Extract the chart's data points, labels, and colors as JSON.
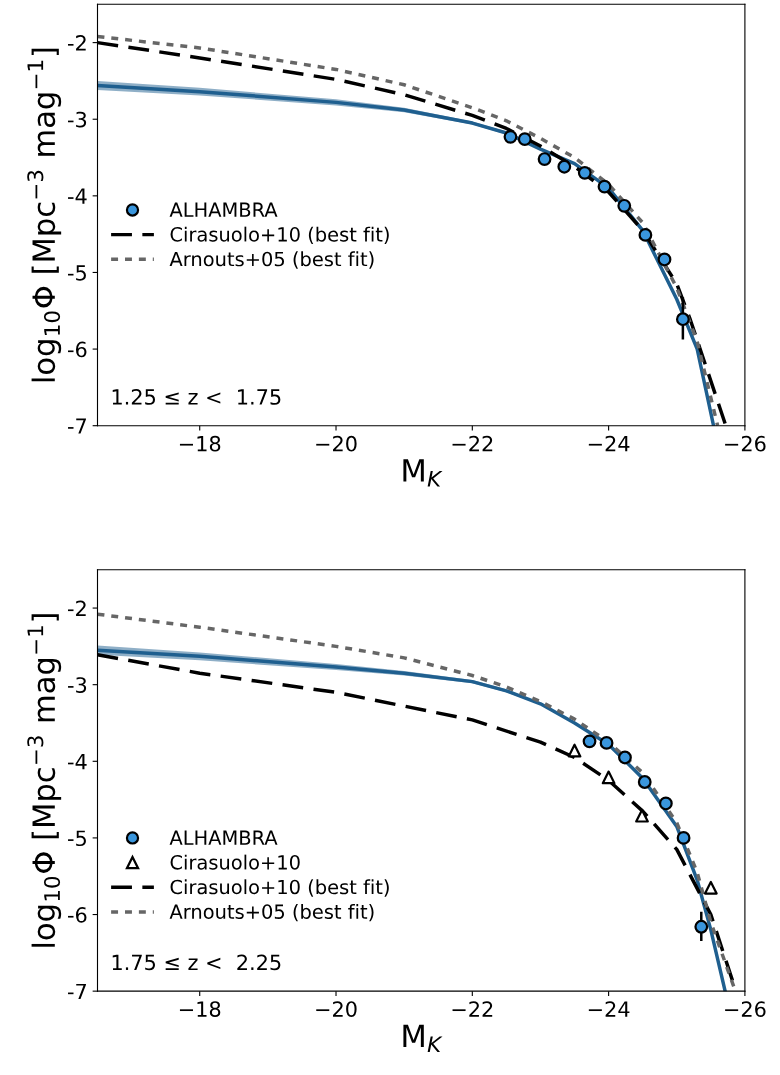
{
  "chart_data": [
    {
      "type": "line",
      "xlabel": "M$_{K}$",
      "ylabel": "log$_{10}$Φ [Mpc$^{−3}$ mag$^{−1}$]",
      "xlim": [
        -16.5,
        -26
      ],
      "ylim": [
        -7,
        -1.5
      ],
      "xticks": [
        {
          "value": -18,
          "label": "−18"
        },
        {
          "value": -20,
          "label": "−20"
        },
        {
          "value": -22,
          "label": "−22"
        },
        {
          "value": -24,
          "label": "−24"
        },
        {
          "value": -26,
          "label": "−26"
        }
      ],
      "yticks": [
        {
          "value": -7,
          "label": "-7"
        },
        {
          "value": -6,
          "label": "-6"
        },
        {
          "value": -5,
          "label": "-5"
        },
        {
          "value": -4,
          "label": "-4"
        },
        {
          "value": -3,
          "label": "-3"
        },
        {
          "value": -2,
          "label": "-2"
        }
      ],
      "grid": false,
      "legend": "left",
      "annotations": [
        "1.25 ≤ z <  1.75"
      ],
      "series": [
        {
          "type": "line",
          "color": "#1f5f8f",
          "line_style": "solid",
          "marker": "none",
          "x": [
            -16.5,
            -18,
            -20,
            -21,
            -22,
            -22.5,
            -23,
            -23.5,
            -24,
            -24.5,
            -25,
            -25.3,
            -25.54
          ],
          "values": [
            -2.56,
            -2.64,
            -2.78,
            -2.88,
            -3.05,
            -3.18,
            -3.39,
            -3.58,
            -3.9,
            -4.45,
            -5.35,
            -6.0,
            -7.0
          ],
          "lower": [
            -2.62,
            -2.69,
            -2.82,
            -2.91,
            -3.07,
            -3.2,
            -3.4,
            -3.59,
            -3.91,
            -4.46,
            -5.36,
            -6.01,
            -7.0
          ],
          "upper": [
            -2.5,
            -2.59,
            -2.74,
            -2.85,
            -3.03,
            -3.16,
            -3.38,
            -3.57,
            -3.89,
            -4.44,
            -5.34,
            -5.99,
            -7.0
          ]
        },
        {
          "type": "scatter",
          "name": "ALHAMBRA",
          "color": "#3a96dd",
          "marker": "circle",
          "x": [
            -22.56,
            -22.77,
            -23.06,
            -23.35,
            -23.65,
            -23.94,
            -24.23,
            -24.54,
            -24.82,
            -25.09
          ],
          "values": [
            -3.23,
            -3.26,
            -3.52,
            -3.62,
            -3.7,
            -3.88,
            -4.13,
            -4.51,
            -4.83,
            -5.61
          ],
          "errors": [
            null,
            null,
            null,
            null,
            null,
            null,
            null,
            null,
            null,
            [
              -5.86,
              -5.34
            ]
          ]
        },
        {
          "type": "line",
          "name": "Cirasuolo+10 (best fit)",
          "color": "#000000",
          "line_style": "dashed",
          "marker": "none",
          "x": [
            -16.5,
            -18,
            -20,
            -21,
            -22,
            -22.5,
            -23,
            -23.5,
            -24,
            -24.5,
            -25,
            -25.2,
            -25.72
          ],
          "values": [
            -2.0,
            -2.2,
            -2.48,
            -2.68,
            -2.95,
            -3.12,
            -3.35,
            -3.62,
            -3.95,
            -4.45,
            -5.15,
            -5.62,
            -7.0
          ]
        },
        {
          "type": "line",
          "name": "Arnouts+05 (best fit)",
          "color": "#666666",
          "line_style": "dotted",
          "marker": "none",
          "x": [
            -16.5,
            -18,
            -20,
            -21,
            -22,
            -22.5,
            -23,
            -23.5,
            -24,
            -24.5,
            -25,
            -25.3,
            -25.6
          ],
          "values": [
            -1.92,
            -2.07,
            -2.35,
            -2.55,
            -2.85,
            -3.02,
            -3.25,
            -3.5,
            -3.85,
            -4.35,
            -5.2,
            -5.9,
            -7.0
          ]
        }
      ]
    },
    {
      "type": "line",
      "xlabel": "M$_{K}$",
      "ylabel": "log$_{10}$Φ [Mpc$^{−3}$ mag$^{−1}$]",
      "xlim": [
        -16.5,
        -26
      ],
      "ylim": [
        -7,
        -1.5
      ],
      "xticks": [
        {
          "value": -18,
          "label": "−18"
        },
        {
          "value": -20,
          "label": "−20"
        },
        {
          "value": -22,
          "label": "−22"
        },
        {
          "value": -24,
          "label": "−24"
        },
        {
          "value": -26,
          "label": "−26"
        }
      ],
      "yticks": [
        {
          "value": -7,
          "label": "-7"
        },
        {
          "value": -6,
          "label": "-6"
        },
        {
          "value": -5,
          "label": "-5"
        },
        {
          "value": -4,
          "label": "-4"
        },
        {
          "value": -3,
          "label": "-3"
        },
        {
          "value": -2,
          "label": "-2"
        }
      ],
      "grid": false,
      "legend": "bottom left",
      "annotations": [
        "1.75 ≤ z <  2.25"
      ],
      "series": [
        {
          "type": "line",
          "color": "#1f5f8f",
          "line_style": "solid",
          "marker": "none",
          "x": [
            -16.5,
            -18,
            -20,
            -21,
            -22,
            -22.5,
            -23,
            -23.5,
            -24,
            -24.5,
            -25,
            -25.3,
            -25.5,
            -25.71
          ],
          "values": [
            -2.55,
            -2.63,
            -2.77,
            -2.85,
            -2.96,
            -3.08,
            -3.25,
            -3.5,
            -3.78,
            -4.22,
            -4.85,
            -5.55,
            -6.2,
            -7.0
          ],
          "lower": [
            -2.61,
            -2.68,
            -2.81,
            -2.88,
            -2.98,
            -3.1,
            -3.26,
            -3.51,
            -3.79,
            -4.23,
            -4.86,
            -5.56,
            -6.21,
            -7.0
          ],
          "upper": [
            -2.49,
            -2.58,
            -2.73,
            -2.82,
            -2.94,
            -3.06,
            -3.24,
            -3.49,
            -3.77,
            -4.21,
            -4.84,
            -5.54,
            -6.19,
            -7.0
          ]
        },
        {
          "type": "scatter",
          "name": "ALHAMBRA",
          "color": "#3a96dd",
          "marker": "circle",
          "x": [
            -23.72,
            -23.97,
            -24.24,
            -24.53,
            -24.84,
            -25.1,
            -25.36
          ],
          "values": [
            -3.74,
            -3.76,
            -3.95,
            -4.27,
            -4.55,
            -5.0,
            -6.16
          ],
          "errors": [
            null,
            null,
            null,
            null,
            null,
            null,
            [
              -6.33,
              -5.98
            ]
          ]
        },
        {
          "type": "scatter",
          "name": "Cirasuolo+10",
          "color": "#000000",
          "marker": "triangle",
          "x": [
            -23.5,
            -24.0,
            -24.49,
            -25.5
          ],
          "values": [
            -3.86,
            -4.21,
            -4.71,
            -5.65
          ]
        },
        {
          "type": "line",
          "name": "Cirasuolo+10 (best fit)",
          "color": "#000000",
          "line_style": "dashed",
          "marker": "none",
          "x": [
            -16.5,
            -18,
            -20,
            -21,
            -22,
            -23,
            -23.5,
            -24,
            -24.5,
            -25,
            -25.5,
            -25.85
          ],
          "values": [
            -2.61,
            -2.85,
            -3.1,
            -3.28,
            -3.46,
            -3.75,
            -3.95,
            -4.25,
            -4.65,
            -5.15,
            -6.0,
            -6.95
          ]
        },
        {
          "type": "line",
          "name": "Arnouts+05 (best fit)",
          "color": "#666666",
          "line_style": "dotted",
          "marker": "none",
          "x": [
            -16.5,
            -18,
            -20,
            -21,
            -22,
            -22.5,
            -23,
            -23.5,
            -24,
            -24.5,
            -25,
            -25.3,
            -25.5,
            -25.86
          ],
          "values": [
            -2.08,
            -2.25,
            -2.5,
            -2.65,
            -2.88,
            -3.03,
            -3.22,
            -3.45,
            -3.75,
            -4.15,
            -4.8,
            -5.45,
            -6.1,
            -7.0
          ]
        }
      ]
    }
  ]
}
